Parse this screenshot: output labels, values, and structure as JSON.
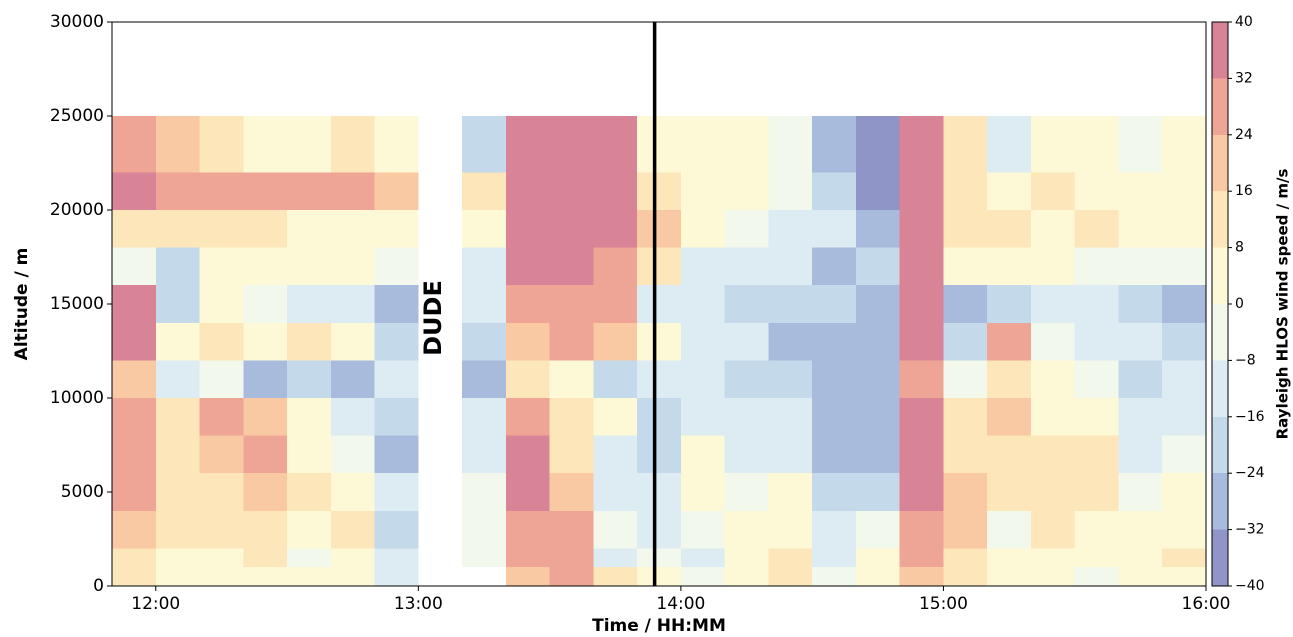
{
  "chart_data": {
    "type": "heatmap",
    "xlabel": "Time / HH:MM",
    "ylabel": "Altitude / m",
    "colorbar_label": "Rayleigh HLOS wind speed / m/s",
    "annotation": "DUDE",
    "vline": "13:54",
    "xlim": [
      "11:50",
      "16:00"
    ],
    "xticks": [
      "12:00",
      "13:00",
      "14:00",
      "15:00",
      "16:00"
    ],
    "ylim": [
      0,
      30000
    ],
    "yticks": [
      0,
      5000,
      10000,
      15000,
      20000,
      25000,
      30000
    ],
    "zlim": [
      -40,
      40
    ],
    "zticks": [
      {
        "value": -40,
        "label": "−40"
      },
      {
        "value": -32,
        "label": "−32"
      },
      {
        "value": -24,
        "label": "−24"
      },
      {
        "value": -16,
        "label": "−16"
      },
      {
        "value": -8,
        "label": "−8"
      },
      0,
      8,
      16,
      24,
      32,
      40
    ],
    "colors": [
      "#9095c8",
      "#a9bbdc",
      "#c4daea",
      "#dcecf2",
      "#f2f8ec",
      "#fdf9d6",
      "#fde6b9",
      "#f8c9a3",
      "#eea595",
      "#d98396"
    ],
    "x": [
      "11:50",
      "12:00",
      "12:10",
      "12:20",
      "12:30",
      "12:40",
      "12:50",
      "13:00",
      "13:10",
      "13:20",
      "13:30",
      "13:40",
      "13:50",
      "14:00",
      "14:10",
      "14:20",
      "14:30",
      "14:40",
      "14:50",
      "15:00",
      "15:10",
      "15:20",
      "15:30",
      "15:40",
      "15:50",
      "16:00"
    ],
    "y": [
      0,
      1000,
      2000,
      4000,
      6000,
      8000,
      10000,
      12000,
      14000,
      16000,
      18000,
      20000,
      22000,
      25000
    ],
    "z": [
      [
        10,
        15,
        20,
        25,
        28,
        30,
        20,
        35,
        35,
        -5,
        10,
        35,
        30
      ],
      [
        5,
        5,
        8,
        10,
        15,
        10,
        -10,
        5,
        -20,
        -20,
        10,
        30,
        20
      ],
      [
        0,
        5,
        10,
        15,
        20,
        25,
        -5,
        10,
        0,
        5,
        15,
        30,
        10
      ],
      [
        5,
        10,
        15,
        20,
        28,
        20,
        -25,
        5,
        -5,
        5,
        10,
        28,
        5
      ],
      [
        0,
        -5,
        5,
        10,
        5,
        0,
        -20,
        10,
        -10,
        0,
        5,
        25,
        5
      ],
      [
        5,
        0,
        10,
        5,
        -5,
        -10,
        -25,
        0,
        -15,
        5,
        5,
        28,
        10
      ],
      [
        -10,
        -15,
        -20,
        -10,
        -25,
        -20,
        -15,
        -20,
        -25,
        -5,
        5,
        20,
        0
      ],
      [
        null,
        null,
        null,
        null,
        null,
        null,
        null,
        null,
        null,
        null,
        null,
        null,
        null
      ],
      [
        null,
        -5,
        -5,
        -5,
        -10,
        -15,
        -30,
        -20,
        -15,
        -10,
        5,
        10,
        -20
      ],
      [
        20,
        25,
        30,
        35,
        35,
        30,
        15,
        20,
        25,
        35,
        38,
        38,
        38
      ],
      [
        25,
        25,
        25,
        20,
        15,
        10,
        5,
        30,
        30,
        38,
        38,
        38,
        38
      ],
      [
        15,
        -10,
        -5,
        -10,
        -15,
        5,
        -20,
        20,
        25,
        30,
        35,
        35,
        38
      ],
      [
        0,
        -5,
        -10,
        -15,
        -20,
        -20,
        -15,
        0,
        -10,
        10,
        20,
        15,
        5
      ],
      [
        -5,
        -10,
        -5,
        0,
        5,
        -10,
        -15,
        -10,
        -15,
        -10,
        5,
        0,
        5
      ],
      [
        5,
        5,
        0,
        -5,
        -10,
        -15,
        -20,
        -15,
        -20,
        -15,
        -5,
        0,
        5
      ],
      [
        10,
        10,
        5,
        0,
        -10,
        -15,
        -20,
        -25,
        -20,
        -15,
        -10,
        -5,
        -5
      ],
      [
        -5,
        -10,
        -15,
        -20,
        -30,
        -30,
        -25,
        -25,
        -20,
        -25,
        -15,
        -20,
        -25
      ],
      [
        5,
        0,
        -5,
        -20,
        -25,
        -30,
        -30,
        -25,
        -25,
        -20,
        -30,
        -35,
        -35
      ],
      [
        20,
        25,
        30,
        35,
        35,
        35,
        30,
        35,
        35,
        38,
        38,
        38,
        38
      ],
      [
        10,
        15,
        20,
        20,
        15,
        10,
        -5,
        -20,
        -25,
        5,
        10,
        15,
        10
      ],
      [
        5,
        0,
        -5,
        10,
        15,
        20,
        10,
        25,
        -20,
        5,
        10,
        5,
        -10
      ],
      [
        0,
        5,
        10,
        15,
        10,
        5,
        0,
        -5,
        -15,
        0,
        5,
        10,
        5
      ],
      [
        -5,
        0,
        5,
        10,
        15,
        5,
        -5,
        -10,
        -15,
        -5,
        10,
        5,
        0
      ],
      [
        0,
        5,
        0,
        -5,
        -10,
        -15,
        -20,
        -15,
        -20,
        -5,
        5,
        0,
        -5
      ],
      [
        5,
        10,
        5,
        0,
        -5,
        -10,
        -15,
        -20,
        -25,
        -5,
        5,
        0,
        5
      ]
    ]
  }
}
